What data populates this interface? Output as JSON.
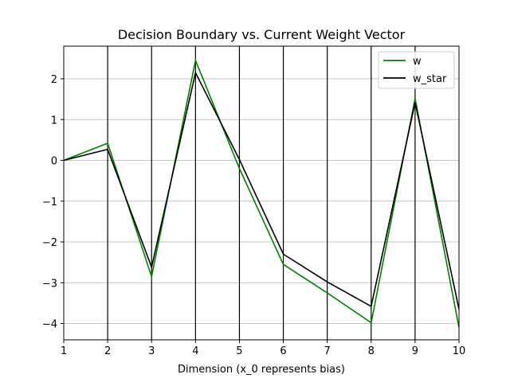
{
  "chart_data": {
    "type": "line",
    "title": "Decision Boundary vs. Current Weight Vector",
    "xlabel": "Dimension (x_0 represents bias)",
    "ylabel": "",
    "xlim": [
      1,
      10
    ],
    "ylim": [
      -4.4,
      2.8
    ],
    "x": [
      1,
      2,
      3,
      4,
      5,
      6,
      7,
      8,
      9,
      10
    ],
    "x_ticks": [
      "1",
      "2",
      "3",
      "4",
      "5",
      "6",
      "7",
      "8",
      "9",
      "10"
    ],
    "y_ticks": [
      {
        "value": 2,
        "label": "2"
      },
      {
        "value": 1,
        "label": "1"
      },
      {
        "value": 0,
        "label": "0"
      },
      {
        "value": -1,
        "label": "−1"
      },
      {
        "value": -2,
        "label": "−2"
      },
      {
        "value": -3,
        "label": "−3"
      },
      {
        "value": -4,
        "label": "−4"
      }
    ],
    "horizontal_grid": true,
    "vertical_lines_at": [
      2,
      3,
      4,
      5,
      6,
      7,
      8,
      9
    ],
    "vertical_line_color": "#000000",
    "grid_color": "#b0b0b0",
    "legend_position": "top-right",
    "series": [
      {
        "name": "w",
        "color": "#008000",
        "values": [
          0,
          0.42,
          -2.85,
          2.45,
          -0.2,
          -2.55,
          -3.25,
          -3.98,
          1.52,
          -4.1
        ]
      },
      {
        "name": "w_star",
        "color": "#000000",
        "values": [
          0,
          0.27,
          -2.62,
          2.15,
          0.02,
          -2.3,
          -2.98,
          -3.58,
          1.42,
          -3.65
        ]
      }
    ]
  }
}
